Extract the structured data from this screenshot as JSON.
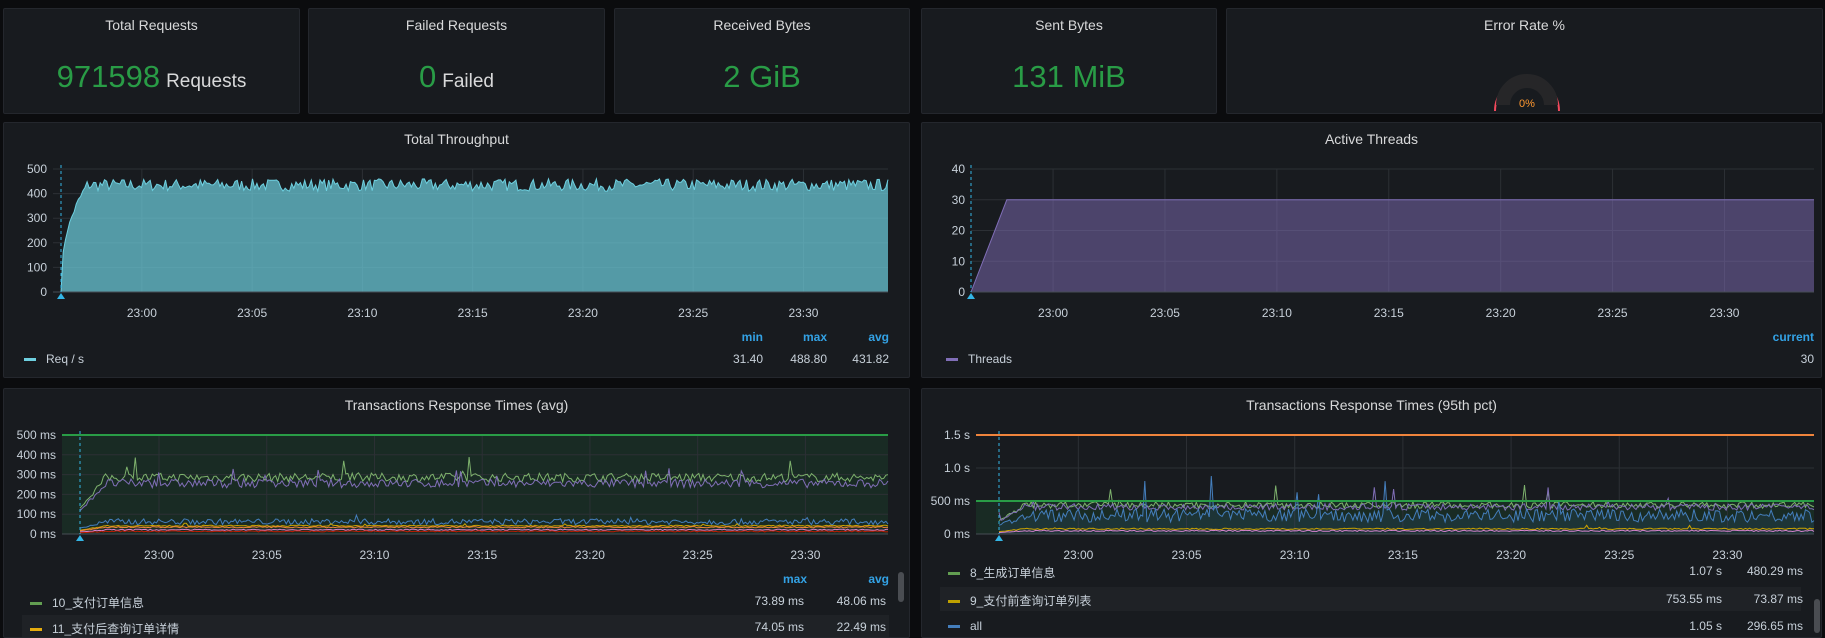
{
  "stats": [
    {
      "title": "Total Requests",
      "value": "971598",
      "unit": "Requests"
    },
    {
      "title": "Failed Requests",
      "value": "0",
      "unit": "Failed"
    },
    {
      "title": "Received Bytes",
      "value": "2 GiB",
      "unit": ""
    },
    {
      "title": "Sent Bytes",
      "value": "131 MiB",
      "unit": ""
    }
  ],
  "error_rate": {
    "title": "Error Rate %",
    "value": "0%",
    "percent": 0,
    "colors": {
      "arc": "#f2495c",
      "text": "#ff9830"
    }
  },
  "colors": {
    "green": "#299c46",
    "accent": "#33a2e5",
    "bg": "#181b1f"
  },
  "chart_data": [
    {
      "type": "area",
      "title": "Total Throughput",
      "x_ticks": [
        "23:00",
        "23:05",
        "23:10",
        "23:15",
        "23:20",
        "23:25",
        "23:30"
      ],
      "xlim": [
        "22:56:20",
        "23:33:50"
      ],
      "y_ticks": [
        "0",
        "100",
        "200",
        "300",
        "400",
        "500"
      ],
      "ylim": [
        0,
        500
      ],
      "grid": true,
      "series": [
        {
          "name": "Req / s",
          "color": "#6ed0e0",
          "ramp_to": 440,
          "level": 440,
          "noise": 25,
          "stats": {
            "min": "31.40",
            "max": "488.80",
            "avg": "431.82"
          }
        }
      ],
      "legend_headers": [
        "min",
        "max",
        "avg"
      ]
    },
    {
      "type": "area",
      "title": "Active Threads",
      "x_ticks": [
        "23:00",
        "23:05",
        "23:10",
        "23:15",
        "23:20",
        "23:25",
        "23:30"
      ],
      "xlim": [
        "22:56:20",
        "23:34:00"
      ],
      "y_ticks": [
        "0",
        "10",
        "20",
        "30",
        "40"
      ],
      "ylim": [
        0,
        40
      ],
      "grid": true,
      "series": [
        {
          "name": "Threads",
          "color": "#806eb7",
          "ramp_to": 30,
          "level": 30,
          "noise": 0,
          "stats": {
            "current": "30"
          }
        }
      ],
      "legend_headers": [
        "current"
      ]
    },
    {
      "type": "line",
      "title": "Transactions Response Times (avg)",
      "x_ticks": [
        "23:00",
        "23:05",
        "23:10",
        "23:15",
        "23:20",
        "23:25",
        "23:30"
      ],
      "xlim": [
        "22:56:20",
        "23:33:50"
      ],
      "y_ticks": [
        "0 ms",
        "100 ms",
        "200 ms",
        "300 ms",
        "400 ms",
        "500 ms"
      ],
      "ylim": [
        0,
        500
      ],
      "grid": true,
      "threshold": {
        "value": 500,
        "color": "#299c46"
      },
      "series": [
        {
          "name": "series-green",
          "color": "#7eb26d",
          "level": 290,
          "noise": 22
        },
        {
          "name": "series-purple",
          "color": "#806eb7",
          "level": 260,
          "noise": 22
        },
        {
          "name": "series-blue",
          "color": "#447ebc",
          "level": 65,
          "noise": 15
        },
        {
          "name": "series-yellow",
          "color": "#cca300",
          "level": 42,
          "noise": 3
        },
        {
          "name": "series-orange",
          "color": "#ef843c",
          "level": 35,
          "noise": 3
        },
        {
          "name": "series-pink",
          "color": "#d683ce",
          "level": 22,
          "noise": 3
        },
        {
          "name": "series-red",
          "color": "#bf1b00",
          "level": 14,
          "noise": 3
        }
      ],
      "legend_headers": [
        "max",
        "avg"
      ],
      "legend": [
        {
          "name": "10_支付订单信息",
          "color": "#629e51",
          "max": "73.89 ms",
          "avg": "48.06 ms"
        },
        {
          "name": "11_支付后查询订单详情",
          "color": "#e5ac0e",
          "max": "74.05 ms",
          "avg": "22.49 ms"
        }
      ]
    },
    {
      "type": "line",
      "title": "Transactions Response Times (95th pct)",
      "x_ticks": [
        "23:00",
        "23:05",
        "23:10",
        "23:15",
        "23:20",
        "23:25",
        "23:30"
      ],
      "xlim": [
        "22:56:20",
        "23:34:00"
      ],
      "y_ticks": [
        "0 ms",
        "500 ms",
        "1.0 s",
        "1.5 s"
      ],
      "ylim": [
        0,
        1.5
      ],
      "grid": true,
      "threshold": {
        "value": 0.5,
        "color": "#299c46"
      },
      "threshold2": {
        "value": 1.5,
        "color": "#ef843c"
      },
      "series": [
        {
          "name": "series-green",
          "color": "#7eb26d",
          "level": 0.45,
          "noise": 0.05
        },
        {
          "name": "series-purple",
          "color": "#806eb7",
          "level": 0.42,
          "noise": 0.05
        },
        {
          "name": "series-blue",
          "color": "#447ebc",
          "level": 0.3,
          "noise": 0.1
        },
        {
          "name": "series-yellow",
          "color": "#cca300",
          "level": 0.08,
          "noise": 0.01
        },
        {
          "name": "series-pink",
          "color": "#d683ce",
          "level": 0.05,
          "noise": 0.01
        }
      ],
      "legend": [
        {
          "name": "8_生成订单信息",
          "color": "#629e51",
          "max": "1.07 s",
          "avg": "480.29 ms"
        },
        {
          "name": "9_支付前查询订单列表",
          "color": "#bfa100",
          "max": "753.55 ms",
          "avg": "73.87 ms"
        },
        {
          "name": "all",
          "color": "#447ebc",
          "max": "1.05 s",
          "avg": "296.65 ms"
        }
      ]
    }
  ]
}
